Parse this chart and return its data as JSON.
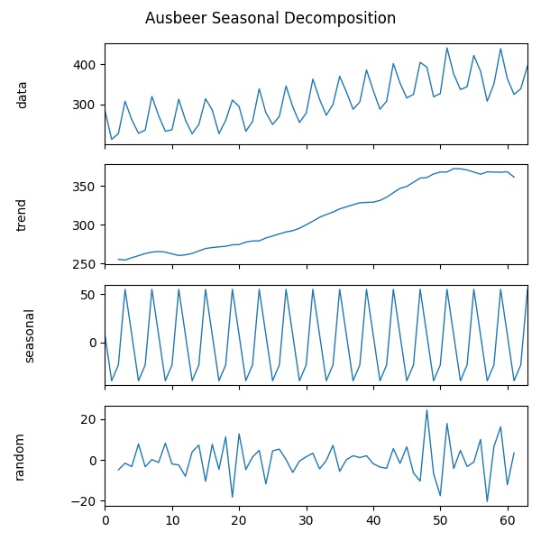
{
  "title": "Ausbeer Seasonal Decomposition",
  "line_color": "#1f77b4",
  "figsize": [
    6.0,
    6.0
  ],
  "dpi": 100,
  "ausbeer": [
    284,
    213,
    227,
    308,
    262,
    228,
    236,
    320,
    272,
    233,
    237,
    313,
    261,
    227,
    250,
    314,
    286,
    227,
    260,
    311,
    295,
    233,
    257,
    339,
    279,
    250,
    270,
    346,
    294,
    255,
    278,
    363,
    313,
    273,
    300,
    370,
    331,
    288,
    306,
    386,
    335,
    288,
    308,
    402,
    353,
    316,
    325,
    405,
    393,
    319,
    327,
    441,
    376,
    337,
    344,
    422,
    383,
    308,
    351,
    439,
    364,
    325,
    339,
    396
  ],
  "period": 4,
  "ylabel_labels": [
    "data",
    "trend",
    "seasonal",
    "random"
  ],
  "title_fontsize": 12
}
